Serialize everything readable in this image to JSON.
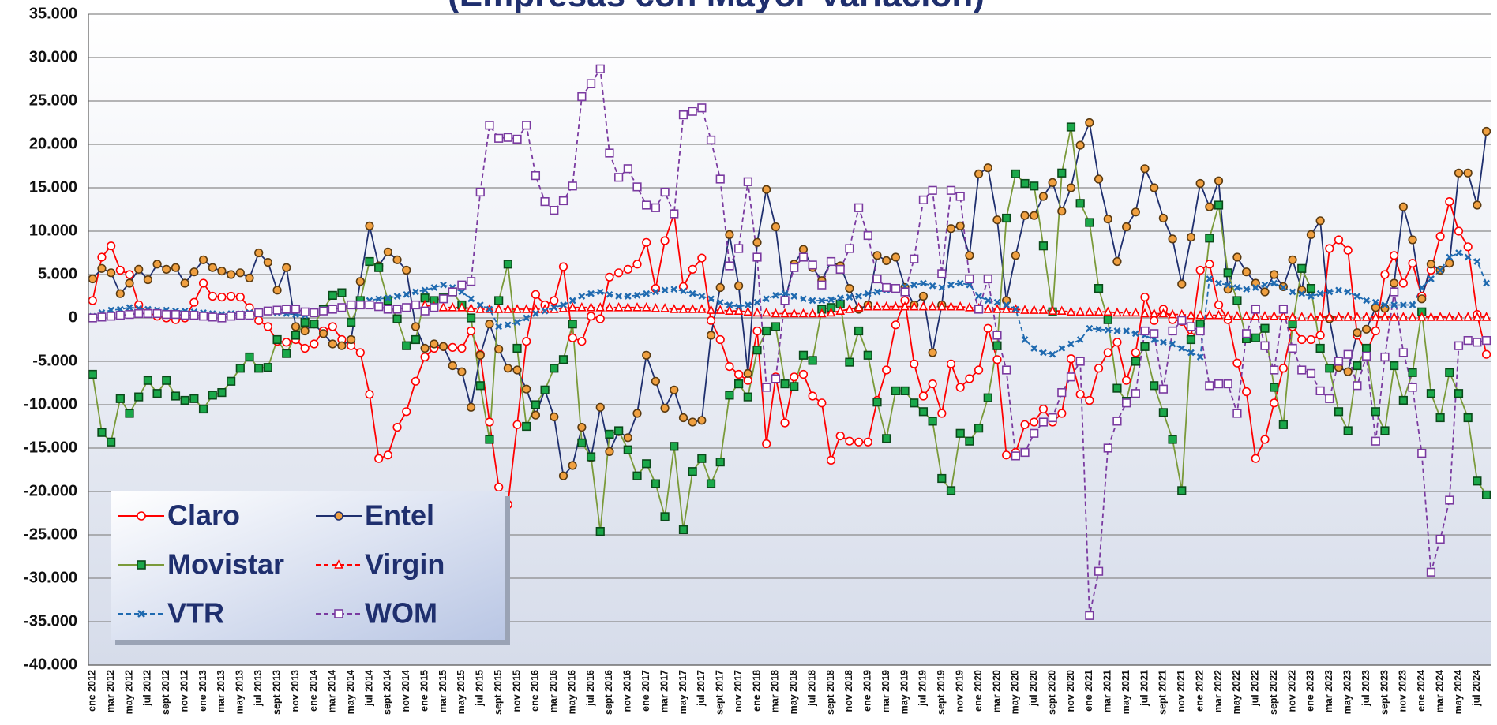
{
  "chart_data": {
    "type": "line",
    "title": "(Empresas con Mayor Variación)",
    "categories": [
      "ene 2012",
      null,
      "mar 2012",
      null,
      "may 2012",
      null,
      "jul 2012",
      null,
      "sept 2012",
      null,
      "nov 2012",
      null,
      "ene 2013",
      null,
      "mar 2013",
      null,
      "may 2013",
      null,
      "jul 2013",
      null,
      "sept 2013",
      null,
      "nov 2013",
      null,
      "ene 2014",
      null,
      "mar 2014",
      null,
      "may 2014",
      null,
      "jul 2014",
      null,
      "sept 2014",
      null,
      "nov 2014",
      null,
      "ene 2015",
      null,
      "mar 2015",
      null,
      "may 2015",
      null,
      "jul 2015",
      null,
      "sept 2015",
      null,
      "nov 2015",
      null,
      "ene 2016",
      null,
      "mar 2016",
      null,
      "may 2016",
      null,
      "jul 2016",
      null,
      "sept 2016",
      null,
      "nov 2016",
      null,
      "ene 2017",
      null,
      "mar 2017",
      null,
      "may 2017",
      null,
      "jul 2017",
      null,
      "sept 2017",
      null,
      "nov 2017",
      null,
      "ene 2018",
      null,
      "mar 2018",
      null,
      "may 2018",
      null,
      "jul 2018",
      null,
      "sept 2018",
      null,
      "nov 2018",
      null,
      "ene 2019",
      null,
      "mar 2019",
      null,
      "may 2019",
      null,
      "jul 2019",
      null,
      "sept 2019",
      null,
      "nov 2019",
      null,
      "ene 2020",
      null,
      "mar 2020",
      null,
      "may 2020",
      null,
      "jul 2020",
      null,
      "sept 2020",
      null,
      "nov 2020",
      null,
      "ene 2021",
      null,
      "mar 2021",
      null,
      "may 2021",
      null,
      "jul 2021",
      null,
      "sept 2021",
      null,
      "nov 2021",
      null,
      "ene 2022",
      null,
      "mar 2022",
      null,
      "may 2022",
      null,
      "jul 2022",
      null,
      "sept 2022",
      null,
      "nov 2022",
      null,
      "ene 2023",
      null,
      "mar 2023",
      null,
      "may 2023",
      null,
      "jul 2023",
      null,
      "sept 2023",
      null,
      "nov 2023",
      null,
      "ene 2024",
      null,
      "mar 2024",
      null,
      "may 2024",
      null,
      "jul 2024",
      null
    ],
    "series": [
      {
        "name": "Claro",
        "color": "#ff0000",
        "marker": "circle",
        "marker_fill": "#ffffff",
        "dash": false,
        "values": [
          2000,
          7000,
          8300,
          5500,
          5000,
          1500,
          600,
          200,
          0,
          -200,
          0,
          1800,
          4000,
          2500,
          2400,
          2500,
          2400,
          1200,
          -300,
          -1000,
          -2700,
          -2800,
          -2500,
          -3500,
          -3000,
          -1500,
          -1000,
          -2500,
          -3200,
          -4000,
          -8800,
          -16200,
          -15800,
          -12600,
          -10800,
          -7300,
          -4500,
          -3500,
          -3300,
          -3400,
          -3500,
          -1500,
          -4200,
          -12000,
          -19500,
          -21500,
          -12300,
          -2700,
          2700,
          1500,
          2000,
          5900,
          -2300,
          -2700,
          200,
          -100,
          4700,
          5200,
          5600,
          6200,
          8700,
          3400,
          8900,
          12000,
          3600,
          5600,
          6900,
          -300,
          -2500,
          -5600,
          -6500,
          -7200,
          -1500,
          -14500,
          -6800,
          -12100,
          -6800,
          -6500,
          -9000,
          -9800,
          -16400,
          -13600,
          -14200,
          -14300,
          -14300,
          -9500,
          -6000,
          -800,
          2000,
          -5300,
          -9000,
          -7600,
          -11000,
          -5300,
          -8000,
          -7000,
          -6000,
          -1200,
          -4800,
          -15800,
          -15500,
          -12300,
          -12000,
          -10500,
          -12000,
          -11000,
          -4700,
          -8800,
          -9500,
          -5800,
          -4000,
          -2800,
          -7200,
          -4000,
          2400,
          -300,
          1000,
          -200,
          -400,
          -2200,
          5500,
          6200,
          1500,
          -200,
          -5200,
          -8500,
          -16200,
          -14000,
          -9800,
          -5800,
          -1000,
          -2500,
          -2500,
          -2000,
          8000,
          9000,
          7800,
          -2000,
          -4000,
          -1500,
          5000,
          7200,
          4000,
          6300,
          2500,
          5500,
          9400,
          13400,
          10000,
          8200,
          400,
          -4200
        ]
      },
      {
        "name": "Entel",
        "color": "#1f2f6e",
        "marker": "circle",
        "marker_fill": "#f0a040",
        "dash": false,
        "values": [
          4500,
          5700,
          5200,
          2800,
          4000,
          5600,
          4400,
          6200,
          5600,
          5800,
          4000,
          5300,
          6700,
          5800,
          5400,
          5000,
          5200,
          4600,
          7500,
          6400,
          3200,
          5800,
          -1000,
          -1500,
          -700,
          -1800,
          -3000,
          -3200,
          -2500,
          4200,
          10600,
          6000,
          7600,
          6700,
          5500,
          -1000,
          -3500,
          -3000,
          -3300,
          -5500,
          -6200,
          -10300,
          -4300,
          -700,
          -3600,
          -5800,
          -6000,
          -8200,
          -11200,
          -8300,
          -11400,
          -18200,
          -17000,
          -12600,
          -16100,
          -10300,
          -15400,
          -13100,
          -13800,
          -11000,
          -4300,
          -7300,
          -10400,
          -8300,
          -11500,
          -12000,
          -11800,
          -2000,
          3500,
          9600,
          3700,
          -6400,
          8700,
          14800,
          10500,
          2000,
          6200,
          7900,
          5800,
          4300,
          6500,
          6000,
          3400,
          1000,
          1500,
          7200,
          6600,
          7000,
          3500,
          1500,
          2500,
          -4000,
          1500,
          10300,
          10600,
          7200,
          16600,
          17300,
          11300,
          2000,
          7200,
          11800,
          11800,
          14000,
          15600,
          12300,
          15000,
          19900,
          22500,
          16000,
          11400,
          6500,
          10500,
          12200,
          17200,
          15000,
          11500,
          9100,
          3900,
          9300,
          15500,
          12800,
          15800,
          3300,
          7000,
          5300,
          4000,
          3000,
          5000,
          3600,
          6700,
          3200,
          9600,
          11200,
          -100,
          -5700,
          -6200,
          -1700,
          -1300,
          1200,
          1100,
          4000,
          12800,
          9000,
          2200,
          6200,
          5500,
          6300,
          16700,
          16700,
          13000,
          21500
        ]
      },
      {
        "name": "Movistar",
        "color": "#7a9a3a",
        "marker": "square",
        "marker_fill": "#1aa84a",
        "dash": false,
        "values": [
          -6500,
          -13200,
          -14300,
          -9300,
          -11000,
          -9100,
          -7200,
          -8700,
          -7200,
          -9000,
          -9500,
          -9300,
          -10500,
          -8900,
          -8600,
          -7300,
          -5800,
          -4500,
          -5800,
          -5700,
          -2500,
          -4100,
          -2000,
          -500,
          -700,
          1000,
          2600,
          2900,
          -500,
          2000,
          6500,
          5800,
          2000,
          -100,
          -3200,
          -2500,
          2300,
          2000,
          2300,
          3000,
          1500,
          0,
          -7800,
          -14000,
          2000,
          6200,
          -3500,
          -12500,
          -10000,
          -8300,
          -5800,
          -4800,
          -700,
          -14400,
          -16000,
          -24600,
          -13400,
          -13000,
          -15200,
          -18200,
          -16800,
          -19100,
          -22900,
          -14800,
          -24400,
          -17700,
          -16200,
          -19100,
          -16600,
          -8900,
          -7600,
          -9100,
          -3700,
          -1500,
          -1000,
          -7600,
          -7900,
          -4300,
          -4900,
          1000,
          1200,
          1600,
          -5100,
          -1500,
          -4300,
          -9700,
          -13900,
          -8400,
          -8400,
          -9800,
          -10800,
          -11900,
          -18500,
          -19900,
          -13300,
          -14200,
          -12700,
          -9200,
          -3200,
          11500,
          16600,
          15500,
          15200,
          8300,
          700,
          16700,
          22000,
          13200,
          11000,
          3400,
          -200,
          -8100,
          -9600,
          -5000,
          -3300,
          -7800,
          -10900,
          -14000,
          -19900,
          -2500,
          -700,
          9200,
          13000,
          5200,
          2000,
          -2400,
          -2300,
          -1200,
          -8000,
          -12300,
          -700,
          5700,
          3400,
          -3500,
          -5800,
          -10800,
          -13000,
          -5500,
          -3500,
          -10800,
          -13000,
          -5500,
          -9500,
          -6300,
          700,
          -8700,
          -11500,
          -6300,
          -8700,
          -11500,
          -18800,
          -20400
        ]
      },
      {
        "name": "Virgin",
        "color": "#ff0000",
        "marker": "triangle",
        "marker_fill": "#ffffff",
        "dash": true,
        "values": [
          null,
          null,
          null,
          null,
          null,
          null,
          null,
          null,
          null,
          null,
          null,
          null,
          null,
          null,
          null,
          null,
          null,
          null,
          null,
          null,
          null,
          null,
          null,
          null,
          null,
          null,
          null,
          null,
          null,
          null,
          null,
          null,
          null,
          null,
          null,
          null,
          1500,
          1300,
          1200,
          1200,
          1200,
          1100,
          1000,
          1000,
          1000,
          1000,
          1000,
          1000,
          1000,
          1000,
          1000,
          1100,
          1200,
          1200,
          1200,
          1200,
          1200,
          1200,
          1200,
          1200,
          1200,
          1100,
          1100,
          1000,
          1000,
          1000,
          1000,
          900,
          900,
          800,
          800,
          700,
          600,
          600,
          500,
          500,
          500,
          500,
          500,
          500,
          600,
          800,
          1000,
          1200,
          1300,
          1300,
          1300,
          1300,
          1300,
          1300,
          1300,
          1300,
          1300,
          1300,
          1300,
          1200,
          1100,
          1000,
          1000,
          1000,
          1000,
          900,
          900,
          900,
          800,
          800,
          700,
          700,
          700,
          700,
          700,
          600,
          600,
          600,
          500,
          500,
          500,
          400,
          400,
          300,
          300,
          300,
          300,
          200,
          200,
          200,
          200,
          200,
          200,
          200,
          100,
          100,
          100,
          100,
          100,
          100,
          100,
          100,
          100,
          100,
          100,
          100,
          100,
          100,
          100,
          100,
          100,
          100,
          100,
          100,
          100,
          100
        ]
      },
      {
        "name": "VTR",
        "color": "#1f6ab0",
        "marker": "cross",
        "marker_fill": "#1f6ab0",
        "dash": true,
        "values": [
          200,
          600,
          900,
          1000,
          1200,
          1100,
          1000,
          900,
          900,
          800,
          800,
          700,
          600,
          500,
          400,
          500,
          500,
          600,
          700,
          700,
          600,
          500,
          400,
          300,
          600,
          800,
          1000,
          1200,
          1500,
          1700,
          2000,
          2200,
          2300,
          2500,
          2700,
          3000,
          3200,
          3500,
          3800,
          3500,
          3000,
          2200,
          1500,
          1000,
          -1000,
          -800,
          -500,
          0,
          500,
          800,
          1200,
          1500,
          2000,
          2500,
          2800,
          3000,
          2700,
          2500,
          2500,
          2600,
          2800,
          3000,
          3200,
          3300,
          3100,
          2800,
          2500,
          2200,
          1800,
          1500,
          1300,
          1500,
          1800,
          2200,
          2600,
          2800,
          2500,
          2200,
          2000,
          2000,
          2100,
          2300,
          2400,
          2500,
          2800,
          3000,
          3200,
          3400,
          3600,
          3800,
          4000,
          3700,
          3500,
          3800,
          4000,
          3800,
          2500,
          2000,
          1800,
          1500,
          1000,
          -2500,
          -3500,
          -4000,
          -4200,
          -3500,
          -3000,
          -2500,
          -1200,
          -1300,
          -1400,
          -1500,
          -1500,
          -1800,
          -2000,
          -2500,
          -2800,
          -3000,
          -3500,
          -4000,
          -4500,
          4500,
          4000,
          3800,
          3500,
          3300,
          3500,
          3800,
          4000,
          3500,
          3000,
          2800,
          2500,
          2800,
          3000,
          3200,
          3000,
          2500,
          2000,
          1800,
          1500,
          1500,
          1500,
          1500,
          3500,
          4500,
          5500,
          7000,
          7500,
          7000,
          6500,
          4000
        ]
      },
      {
        "name": "WOM",
        "color": "#7a3aa0",
        "marker": "square",
        "marker_fill": "#ffffff",
        "dash": true,
        "values": [
          0,
          100,
          200,
          300,
          400,
          500,
          500,
          500,
          400,
          400,
          300,
          300,
          200,
          100,
          0,
          200,
          300,
          300,
          600,
          800,
          900,
          1000,
          1000,
          700,
          600,
          800,
          1000,
          1200,
          1500,
          1500,
          1500,
          1300,
          1000,
          1000,
          1200,
          1500,
          800,
          1200,
          2200,
          3000,
          3800,
          4200,
          14500,
          22200,
          20700,
          20800,
          20600,
          22200,
          16400,
          13400,
          12400,
          13500,
          15200,
          25500,
          27000,
          28700,
          19000,
          16200,
          17200,
          15100,
          13000,
          12700,
          14500,
          12000,
          23400,
          23800,
          24200,
          20500,
          16000,
          6000,
          8000,
          15700,
          7000,
          -8000,
          -7000,
          2000,
          5800,
          7000,
          6100,
          3800,
          6500,
          5600,
          8000,
          12700,
          9500,
          4500,
          3500,
          3400,
          3000,
          6800,
          13600,
          14700,
          5100,
          14700,
          14000,
          4500,
          1000,
          4500,
          -2000,
          -6000,
          -15900,
          -15500,
          -13300,
          -12000,
          -11500,
          -8600,
          -6800,
          -5000,
          -34300,
          -29200,
          -15000,
          -11900,
          -9800,
          -8700,
          -1500,
          -1800,
          -8200,
          -1500,
          -300,
          -1000,
          -1500,
          -7800,
          -7600,
          -7600,
          -11000,
          -1800,
          1000,
          -3200,
          -6000,
          1000,
          -3500,
          -6000,
          -6400,
          -8400,
          -9300,
          -5000,
          -4200,
          -7800,
          -4400,
          -14200,
          -4500,
          3000,
          -4000,
          -8000,
          -15600,
          -29300,
          -25500,
          -21000,
          -3200,
          -2600,
          -2800,
          -2600
        ]
      }
    ],
    "ylim": [
      -40000,
      35000
    ],
    "yticks": [
      {
        "value": -40000,
        "label": "-40.000"
      },
      {
        "value": -35000,
        "label": "-35.000"
      },
      {
        "value": -30000,
        "label": "-30.000"
      },
      {
        "value": -25000,
        "label": "-25.000"
      },
      {
        "value": -20000,
        "label": "-20.000"
      },
      {
        "value": -15000,
        "label": "-15.000"
      },
      {
        "value": -10000,
        "label": "-10.000"
      },
      {
        "value": -5000,
        "label": "-5.000"
      },
      0,
      {
        "value": 5000,
        "label": "5.000"
      },
      {
        "value": 10000,
        "label": "10.000"
      },
      {
        "value": 15000,
        "label": "15.000"
      },
      {
        "value": 20000,
        "label": "20.000"
      },
      {
        "value": 25000,
        "label": "25.000"
      },
      {
        "value": 30000,
        "label": "30.000"
      },
      {
        "value": 35000,
        "label": "35.000"
      }
    ],
    "grid": true,
    "legend": "lower left"
  }
}
